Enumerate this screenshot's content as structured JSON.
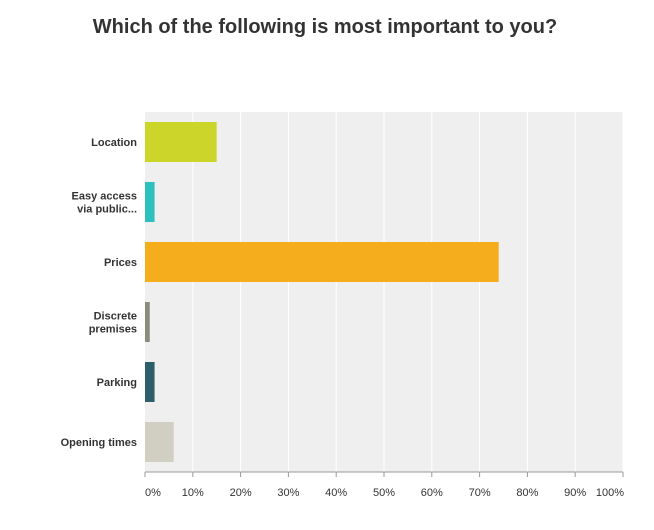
{
  "chart_data": {
    "type": "bar",
    "orientation": "horizontal",
    "title": "Which of the following is most important to you?",
    "categories": [
      {
        "lines": [
          "Location"
        ]
      },
      {
        "lines": [
          "Easy access",
          "via public..."
        ]
      },
      {
        "lines": [
          "Prices"
        ]
      },
      {
        "lines": [
          "Discrete",
          "premises"
        ]
      },
      {
        "lines": [
          "Parking"
        ]
      },
      {
        "lines": [
          "Opening times"
        ]
      }
    ],
    "values": [
      15,
      2,
      74,
      1,
      2,
      6
    ],
    "colors": [
      "#ccd62a",
      "#2ebfbf",
      "#f5ad1e",
      "#8c8c7c",
      "#2e5e6a",
      "#d1cfc2"
    ],
    "xlim": [
      0,
      100
    ],
    "xticks": [
      0,
      10,
      20,
      30,
      40,
      50,
      60,
      70,
      80,
      90,
      100
    ],
    "xtick_labels": [
      "0%",
      "10%",
      "20%",
      "30%",
      "40%",
      "50%",
      "60%",
      "70%",
      "80%",
      "90%",
      "100%"
    ],
    "xlabel": "",
    "ylabel": "",
    "grid": true,
    "plot_background": "#efefef",
    "grid_color": "#ffffff"
  }
}
